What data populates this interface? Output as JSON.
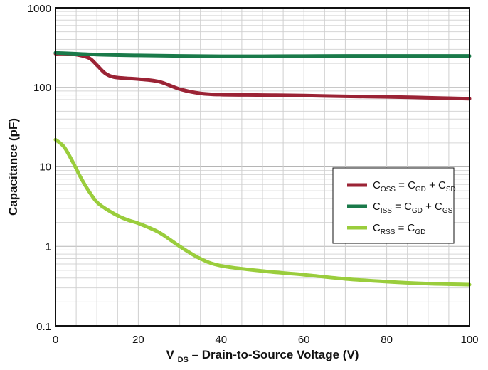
{
  "chart_data": {
    "type": "line",
    "title": "",
    "xlabel": {
      "main": "V",
      "sub": "DS",
      "rest": " – Drain-to-Source Voltage (V)"
    },
    "ylabel": "Capacitance (pF)",
    "xlim": [
      0,
      100
    ],
    "ylim": [
      0.1,
      1000
    ],
    "yscale": "log",
    "grid": true,
    "legend_position": "right-middle",
    "x_ticks": [
      0,
      20,
      40,
      60,
      80,
      100
    ],
    "x_tick_labels": [
      "0",
      "20",
      "40",
      "60",
      "80",
      "100"
    ],
    "y_ticks": [
      0.1,
      1,
      10,
      100,
      1000
    ],
    "y_tick_labels": [
      "0.1",
      "1",
      "10",
      "100",
      "1000"
    ],
    "series": [
      {
        "legend": [
          {
            "t": "C"
          },
          {
            "t": "OSS",
            "sub": true
          },
          {
            "t": " = C"
          },
          {
            "t": "GD",
            "sub": true
          },
          {
            "t": " + C"
          },
          {
            "t": "SD",
            "sub": true
          }
        ],
        "color": "#9b2335",
        "x": [
          0,
          4,
          8,
          10,
          12,
          14,
          17,
          20,
          25,
          30,
          35,
          40,
          50,
          60,
          70,
          80,
          90,
          100
        ],
        "y": [
          265,
          262,
          235,
          190,
          150,
          135,
          130,
          127,
          118,
          95,
          84,
          81,
          80,
          79,
          77,
          76,
          74,
          72
        ]
      },
      {
        "legend": [
          {
            "t": "C"
          },
          {
            "t": "ISS",
            "sub": true
          },
          {
            "t": " = C"
          },
          {
            "t": "GD",
            "sub": true
          },
          {
            "t": " + C"
          },
          {
            "t": "GS",
            "sub": true
          }
        ],
        "color": "#1a7a4a",
        "x": [
          0,
          10,
          20,
          30,
          40,
          50,
          60,
          70,
          80,
          90,
          100
        ],
        "y": [
          272,
          258,
          252,
          248,
          246,
          246,
          247,
          248,
          248,
          248,
          248
        ]
      },
      {
        "legend": [
          {
            "t": "C"
          },
          {
            "t": "RSS",
            "sub": true
          },
          {
            "t": " = C"
          },
          {
            "t": "GD",
            "sub": true
          }
        ],
        "color": "#9acd3c",
        "x": [
          0,
          2,
          4,
          6,
          8,
          10,
          12,
          14,
          16,
          18,
          20,
          25,
          30,
          35,
          40,
          50,
          60,
          70,
          80,
          90,
          100
        ],
        "y": [
          22,
          18,
          12,
          7.5,
          5,
          3.6,
          3,
          2.6,
          2.3,
          2.1,
          1.95,
          1.5,
          1.0,
          0.7,
          0.57,
          0.49,
          0.44,
          0.39,
          0.36,
          0.34,
          0.33
        ]
      }
    ]
  }
}
